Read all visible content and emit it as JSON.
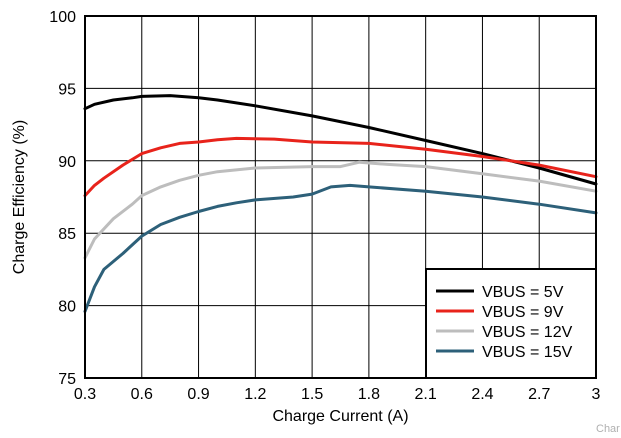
{
  "chart_data": {
    "type": "line",
    "title": "",
    "xlabel": "Charge Current (A)",
    "ylabel": "Charge Efficiency (%)",
    "xlim": [
      0.3,
      3.0
    ],
    "ylim": [
      75,
      100
    ],
    "x_ticks": [
      "0.3",
      "0.6",
      "0.9",
      "1.2",
      "1.5",
      "1.8",
      "2.1",
      "2.4",
      "2.7",
      "3"
    ],
    "y_ticks": [
      "75",
      "80",
      "85",
      "90",
      "95",
      "100"
    ],
    "grid": true,
    "legend_position": "bottom-right",
    "series": [
      {
        "name": "VBUS = 5V",
        "color": "#000000",
        "points": [
          [
            0.3,
            93.6
          ],
          [
            0.35,
            93.9
          ],
          [
            0.45,
            94.2
          ],
          [
            0.55,
            94.35
          ],
          [
            0.6,
            94.45
          ],
          [
            0.75,
            94.5
          ],
          [
            0.9,
            94.35
          ],
          [
            1.0,
            94.2
          ],
          [
            1.2,
            93.8
          ],
          [
            1.5,
            93.1
          ],
          [
            1.8,
            92.3
          ],
          [
            2.1,
            91.4
          ],
          [
            2.4,
            90.5
          ],
          [
            2.7,
            89.5
          ],
          [
            3.0,
            88.4
          ]
        ]
      },
      {
        "name": "VBUS = 9V",
        "color": "#e8231b",
        "points": [
          [
            0.3,
            87.6
          ],
          [
            0.35,
            88.3
          ],
          [
            0.4,
            88.8
          ],
          [
            0.5,
            89.7
          ],
          [
            0.6,
            90.5
          ],
          [
            0.7,
            90.9
          ],
          [
            0.8,
            91.2
          ],
          [
            0.9,
            91.3
          ],
          [
            1.0,
            91.45
          ],
          [
            1.1,
            91.55
          ],
          [
            1.3,
            91.5
          ],
          [
            1.5,
            91.3
          ],
          [
            1.8,
            91.2
          ],
          [
            2.1,
            90.8
          ],
          [
            2.4,
            90.3
          ],
          [
            2.7,
            89.7
          ],
          [
            3.0,
            88.9
          ]
        ]
      },
      {
        "name": "VBUS = 12V",
        "color": "#bdbdbd",
        "points": [
          [
            0.3,
            83.3
          ],
          [
            0.35,
            84.6
          ],
          [
            0.45,
            86.0
          ],
          [
            0.55,
            87.0
          ],
          [
            0.6,
            87.6
          ],
          [
            0.7,
            88.2
          ],
          [
            0.8,
            88.65
          ],
          [
            0.9,
            89.0
          ],
          [
            1.0,
            89.25
          ],
          [
            1.2,
            89.5
          ],
          [
            1.5,
            89.6
          ],
          [
            1.65,
            89.6
          ],
          [
            1.75,
            89.9
          ],
          [
            1.9,
            89.75
          ],
          [
            2.1,
            89.6
          ],
          [
            2.4,
            89.1
          ],
          [
            2.7,
            88.6
          ],
          [
            3.0,
            87.9
          ]
        ]
      },
      {
        "name": "VBUS = 15V",
        "color": "#2d6079",
        "points": [
          [
            0.3,
            79.6
          ],
          [
            0.35,
            81.3
          ],
          [
            0.4,
            82.5
          ],
          [
            0.5,
            83.6
          ],
          [
            0.6,
            84.8
          ],
          [
            0.7,
            85.6
          ],
          [
            0.8,
            86.1
          ],
          [
            0.9,
            86.5
          ],
          [
            1.0,
            86.85
          ],
          [
            1.1,
            87.1
          ],
          [
            1.2,
            87.3
          ],
          [
            1.4,
            87.5
          ],
          [
            1.5,
            87.7
          ],
          [
            1.6,
            88.2
          ],
          [
            1.7,
            88.3
          ],
          [
            1.8,
            88.2
          ],
          [
            2.1,
            87.9
          ],
          [
            2.4,
            87.5
          ],
          [
            2.7,
            87.0
          ],
          [
            3.0,
            86.4
          ]
        ]
      }
    ]
  },
  "watermark": "Char"
}
